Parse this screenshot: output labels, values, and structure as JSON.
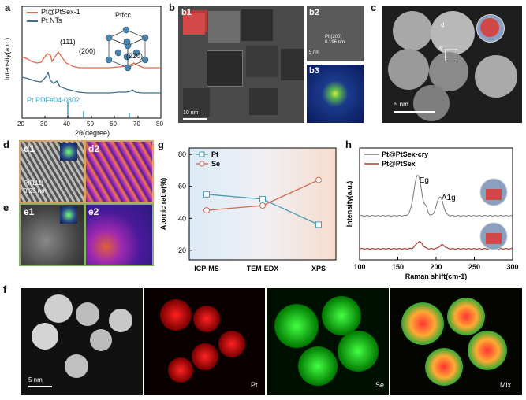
{
  "panel_labels": {
    "a": "a",
    "b": "b",
    "c": "c",
    "d": "d",
    "e": "e",
    "f": "f",
    "g": "g",
    "h": "h"
  },
  "colors": {
    "pt_at_ptse": "#e36a4a",
    "pt_nts": "#3d6f8f",
    "ref_line": "#3aa3c9",
    "g_pt": "#4a9bb5",
    "g_se": "#d0674f",
    "h_cry": "#777777",
    "h_pt": "#b53b30",
    "frame_d": "#d6a36a",
    "frame_e": "#88b06a"
  },
  "panel_a": {
    "legend": [
      "Pt@PtSe$_x$-1",
      "Pt NTs"
    ],
    "legend_display": [
      "Pt@PtSex-1",
      "Pt NTs"
    ],
    "inset_label": "Ptfcc",
    "peak_labels": [
      "(111)",
      "(200)",
      "(220)"
    ],
    "ref_label": "Pt PDF#04-0802",
    "ylabel": "Intensity(a.u.)",
    "xlabel": "2θ(degree)",
    "xticks": [
      "20",
      "30",
      "40",
      "50",
      "60",
      "70",
      "80"
    ]
  },
  "panel_b": {
    "sub_labels": [
      "b1",
      "b2",
      "b3"
    ],
    "b1_scale": "10 nm",
    "b2_annot": [
      "Pt (200)",
      "0.196 nm"
    ],
    "b2_scale": "5 nm"
  },
  "panel_c": {
    "marks": [
      "d",
      "e"
    ],
    "scale": "5 nm"
  },
  "panel_d": {
    "sub_labels": [
      "d1",
      "d2"
    ],
    "annot": [
      "Pt(111)",
      "0.23 nm"
    ]
  },
  "panel_e": {
    "sub_labels": [
      "e1",
      "e2"
    ]
  },
  "panel_f": {
    "channels": [
      "",
      "Pt",
      "Se",
      "Mix"
    ],
    "scale": "5 nm"
  },
  "chart_data": [
    {
      "type": "line",
      "panel": "g",
      "categories": [
        "ICP-MS",
        "TEM-EDX",
        "XPS"
      ],
      "series": [
        {
          "name": "Pt",
          "values": [
            55,
            52,
            36
          ]
        },
        {
          "name": "Se",
          "values": [
            45,
            48,
            64
          ]
        }
      ],
      "ylabel": "Atomic ratio(%)",
      "ylim": [
        14,
        84
      ],
      "yticks": [
        20,
        40,
        60,
        80
      ],
      "legend_position": "top-left"
    },
    {
      "type": "line",
      "panel": "h",
      "series": [
        {
          "name": "Pt@PtSex-cry",
          "peaks": [
            {
              "x": 176,
              "label": "Eg"
            },
            {
              "x": 205,
              "label": "A1g"
            }
          ]
        },
        {
          "name": "Pt@PtSex"
        }
      ],
      "xlabel": "Raman shift(cm-1)",
      "ylabel": "Intensity(a.u.)",
      "xlim": [
        100,
        300
      ],
      "xticks": [
        100,
        150,
        200,
        250,
        300
      ],
      "legend_position": "top-left"
    }
  ]
}
